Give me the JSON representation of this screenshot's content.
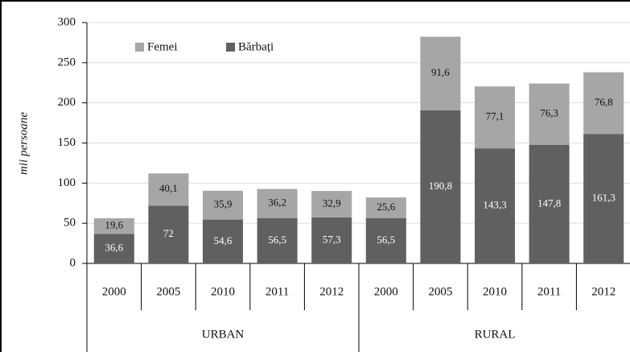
{
  "chart_data": {
    "type": "stacked-bar",
    "y_label": "mii persoane",
    "categories": [
      "2000",
      "2005",
      "2010",
      "2011",
      "2012",
      "2000",
      "2005",
      "2010",
      "2011",
      "2012"
    ],
    "groups": [
      "URBAN",
      "RURAL"
    ],
    "series": [
      {
        "name": "Bărbați",
        "color": "#606060",
        "label_color": "#ffffff",
        "values": [
          36.6,
          72,
          54.6,
          56.5,
          57.3,
          56.5,
          190.8,
          143.3,
          147.8,
          161.3
        ],
        "value_labels": [
          "36,6",
          "72",
          "54,6",
          "56,5",
          "57,3",
          "56,5",
          "190,8",
          "143,3",
          "147,8",
          "161,3"
        ]
      },
      {
        "name": "Femei",
        "color": "#a6a6a6",
        "label_color": "#111111",
        "values": [
          19.6,
          40.1,
          35.9,
          36.2,
          32.9,
          25.6,
          91.6,
          77.1,
          76.3,
          76.8
        ],
        "value_labels": [
          "19,6",
          "40,1",
          "35,9",
          "36,2",
          "32,9",
          "25,6",
          "91,6",
          "77,1",
          "76,3",
          "76,8"
        ]
      }
    ],
    "ylim": [
      0,
      300
    ],
    "yticks": [
      0,
      50,
      100,
      150,
      200,
      250,
      300
    ],
    "grid": true,
    "legend": "top-left"
  }
}
